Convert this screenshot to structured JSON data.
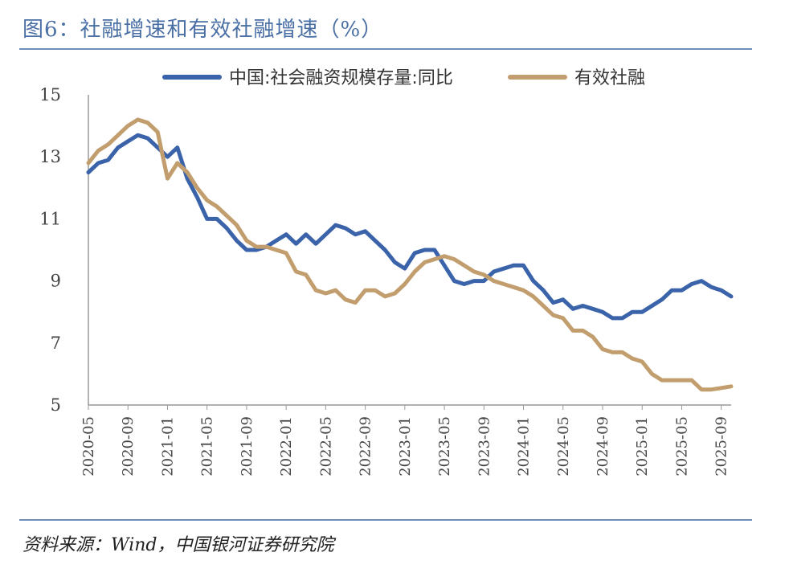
{
  "header": {
    "title": "图6：社融增速和有效社融增速（%）"
  },
  "footer": {
    "source": "资料来源：Wind，中国银河证券研究院"
  },
  "chart_data": {
    "type": "line",
    "title": "图6：社融增速和有效社融增速（%）",
    "xlabel": "",
    "ylabel": "",
    "ylim": [
      5,
      15
    ],
    "yticks": [
      5,
      7,
      9,
      11,
      13,
      15
    ],
    "grid": false,
    "legend_position": "top",
    "x": [
      "2020-05",
      "2020-06",
      "2020-07",
      "2020-08",
      "2020-09",
      "2020-10",
      "2020-11",
      "2020-12",
      "2021-01",
      "2021-02",
      "2021-03",
      "2021-04",
      "2021-05",
      "2021-06",
      "2021-07",
      "2021-08",
      "2021-09",
      "2021-10",
      "2021-11",
      "2021-12",
      "2022-01",
      "2022-02",
      "2022-03",
      "2022-04",
      "2022-05",
      "2022-06",
      "2022-07",
      "2022-08",
      "2022-09",
      "2022-10",
      "2022-11",
      "2022-12",
      "2023-01",
      "2023-02",
      "2023-03",
      "2023-04",
      "2023-05",
      "2023-06",
      "2023-07",
      "2023-08",
      "2023-09",
      "2023-10",
      "2023-11",
      "2023-12",
      "2024-01",
      "2024-02",
      "2024-03",
      "2024-04",
      "2024-05",
      "2024-06",
      "2024-07",
      "2024-08",
      "2024-09",
      "2024-10",
      "2024-11",
      "2024-12",
      "2025-01",
      "2025-02",
      "2025-03",
      "2025-04",
      "2025-05",
      "2025-06",
      "2025-07",
      "2025-08",
      "2025-09",
      "2025-10"
    ],
    "xticks": [
      "2020-05",
      "2020-09",
      "2021-01",
      "2021-05",
      "2021-09",
      "2022-01",
      "2022-05",
      "2022-09",
      "2023-01",
      "2023-05",
      "2023-09",
      "2024-01",
      "2024-05",
      "2024-09",
      "2025-01",
      "2025-05",
      "2025-09"
    ],
    "series": [
      {
        "name": "中国:社会融资规模存量:同比",
        "color": "#3a63aa",
        "values": [
          12.5,
          12.8,
          12.9,
          13.3,
          13.5,
          13.7,
          13.6,
          13.3,
          13.0,
          13.3,
          12.3,
          11.7,
          11.0,
          11.0,
          10.7,
          10.3,
          10.0,
          10.0,
          10.1,
          10.3,
          10.5,
          10.2,
          10.5,
          10.2,
          10.5,
          10.8,
          10.7,
          10.5,
          10.6,
          10.3,
          10.0,
          9.6,
          9.4,
          9.9,
          10.0,
          10.0,
          9.5,
          9.0,
          8.9,
          9.0,
          9.0,
          9.3,
          9.4,
          9.5,
          9.5,
          9.0,
          8.7,
          8.3,
          8.4,
          8.1,
          8.2,
          8.1,
          8.0,
          7.8,
          7.8,
          8.0,
          8.0,
          8.2,
          8.4,
          8.7,
          8.7,
          8.9,
          9.0,
          8.8,
          8.7,
          8.5
        ]
      },
      {
        "name": "有效社融",
        "color": "#c29e6e",
        "values": [
          12.8,
          13.2,
          13.4,
          13.7,
          14.0,
          14.2,
          14.1,
          13.8,
          12.3,
          12.8,
          12.5,
          12.0,
          11.6,
          11.4,
          11.1,
          10.8,
          10.3,
          10.1,
          10.1,
          10.0,
          9.9,
          9.3,
          9.2,
          8.7,
          8.6,
          8.7,
          8.4,
          8.3,
          8.7,
          8.7,
          8.5,
          8.6,
          8.9,
          9.3,
          9.6,
          9.7,
          9.8,
          9.7,
          9.5,
          9.3,
          9.2,
          9.0,
          8.9,
          8.8,
          8.7,
          8.5,
          8.2,
          7.9,
          7.8,
          7.4,
          7.4,
          7.2,
          6.8,
          6.7,
          6.7,
          6.5,
          6.4,
          6.0,
          5.8,
          5.8,
          5.8,
          5.8,
          5.5,
          5.5,
          5.55,
          5.6
        ]
      }
    ]
  }
}
